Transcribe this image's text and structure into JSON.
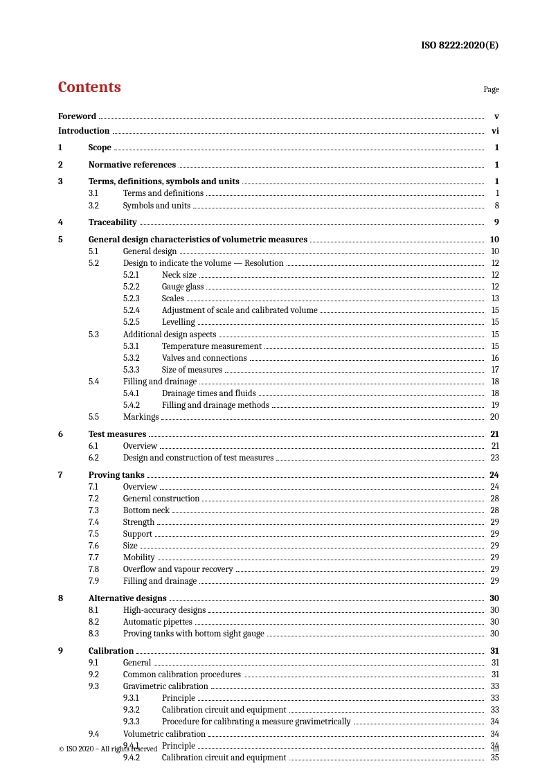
{
  "doc_id": "ISO 8222:2020(E)",
  "contents_title": "Contents",
  "page_label": "Page",
  "footer_left": "© ISO 2020 – All rights reserved",
  "footer_right": "iii",
  "front": [
    {
      "title": "Foreword",
      "page": "v"
    },
    {
      "title": "Introduction",
      "page": "vi"
    }
  ],
  "sections": [
    {
      "num": "1",
      "title": "Scope",
      "page": "1",
      "subs": []
    },
    {
      "num": "2",
      "title": "Normative references",
      "page": "1",
      "subs": []
    },
    {
      "num": "3",
      "title": "Terms, definitions, symbols and units",
      "page": "1",
      "subs": [
        {
          "num": "3.1",
          "title": "Terms and definitions",
          "page": "1",
          "subs": []
        },
        {
          "num": "3.2",
          "title": "Symbols and units",
          "page": "8",
          "subs": []
        }
      ]
    },
    {
      "num": "4",
      "title": "Traceability",
      "page": "9",
      "subs": []
    },
    {
      "num": "5",
      "title": "General design characteristics of volumetric measures",
      "page": "10",
      "subs": [
        {
          "num": "5.1",
          "title": "General design",
          "page": "10",
          "subs": []
        },
        {
          "num": "5.2",
          "title": "Design to indicate the volume — Resolution",
          "page": "12",
          "subs": [
            {
              "num": "5.2.1",
              "title": "Neck size",
              "page": "12"
            },
            {
              "num": "5.2.2",
              "title": "Gauge glass",
              "page": "12"
            },
            {
              "num": "5.2.3",
              "title": "Scales",
              "page": "13"
            },
            {
              "num": "5.2.4",
              "title": "Adjustment of scale and calibrated volume",
              "page": "15"
            },
            {
              "num": "5.2.5",
              "title": "Levelling",
              "page": "15"
            }
          ]
        },
        {
          "num": "5.3",
          "title": "Additional design aspects",
          "page": "15",
          "subs": [
            {
              "num": "5.3.1",
              "title": "Temperature measurement",
              "page": "15"
            },
            {
              "num": "5.3.2",
              "title": "Valves and connections",
              "page": "16"
            },
            {
              "num": "5.3.3",
              "title": "Size of measures",
              "page": "17"
            }
          ]
        },
        {
          "num": "5.4",
          "title": "Filling and drainage",
          "page": "18",
          "subs": [
            {
              "num": "5.4.1",
              "title": "Drainage times and fluids",
              "page": "18"
            },
            {
              "num": "5.4.2",
              "title": "Filling and drainage methods",
              "page": "19"
            }
          ]
        },
        {
          "num": "5.5",
          "title": "Markings",
          "page": "20",
          "subs": []
        }
      ]
    },
    {
      "num": "6",
      "title": "Test measures",
      "page": "21",
      "subs": [
        {
          "num": "6.1",
          "title": "Overview",
          "page": "21",
          "subs": []
        },
        {
          "num": "6.2",
          "title": "Design and construction of test measures",
          "page": "23",
          "subs": []
        }
      ]
    },
    {
      "num": "7",
      "title": "Proving tanks",
      "page": "24",
      "subs": [
        {
          "num": "7.1",
          "title": "Overview",
          "page": "24",
          "subs": []
        },
        {
          "num": "7.2",
          "title": "General construction",
          "page": "28",
          "subs": []
        },
        {
          "num": "7.3",
          "title": "Bottom neck",
          "page": "28",
          "subs": []
        },
        {
          "num": "7.4",
          "title": "Strength",
          "page": "29",
          "subs": []
        },
        {
          "num": "7.5",
          "title": "Support",
          "page": "29",
          "subs": []
        },
        {
          "num": "7.6",
          "title": "Size",
          "page": "29",
          "subs": []
        },
        {
          "num": "7.7",
          "title": "Mobility",
          "page": "29",
          "subs": []
        },
        {
          "num": "7.8",
          "title": "Overflow and vapour recovery",
          "page": "29",
          "subs": []
        },
        {
          "num": "7.9",
          "title": "Filling and drainage",
          "page": "29",
          "subs": []
        }
      ]
    },
    {
      "num": "8",
      "title": "Alternative designs",
      "page": "30",
      "subs": [
        {
          "num": "8.1",
          "title": "High-accuracy designs",
          "page": "30",
          "subs": []
        },
        {
          "num": "8.2",
          "title": "Automatic pipettes",
          "page": "30",
          "subs": []
        },
        {
          "num": "8.3",
          "title": "Proving tanks with bottom sight gauge",
          "page": "30",
          "subs": []
        }
      ]
    },
    {
      "num": "9",
      "title": "Calibration",
      "page": "31",
      "subs": [
        {
          "num": "9.1",
          "title": "General",
          "page": "31",
          "subs": []
        },
        {
          "num": "9.2",
          "title": "Common calibration procedures",
          "page": "31",
          "subs": []
        },
        {
          "num": "9.3",
          "title": "Gravimetric calibration",
          "page": "33",
          "subs": [
            {
              "num": "9.3.1",
              "title": "Principle",
              "page": "33"
            },
            {
              "num": "9.3.2",
              "title": "Calibration circuit and equipment",
              "page": "33"
            },
            {
              "num": "9.3.3",
              "title": "Procedure for calibrating a measure gravimetrically",
              "page": "34"
            }
          ]
        },
        {
          "num": "9.4",
          "title": "Volumetric calibration",
          "page": "34",
          "subs": [
            {
              "num": "9.4.1",
              "title": "Principle",
              "page": "34"
            },
            {
              "num": "9.4.2",
              "title": "Calibration circuit and equipment",
              "page": "35"
            }
          ]
        }
      ]
    }
  ]
}
